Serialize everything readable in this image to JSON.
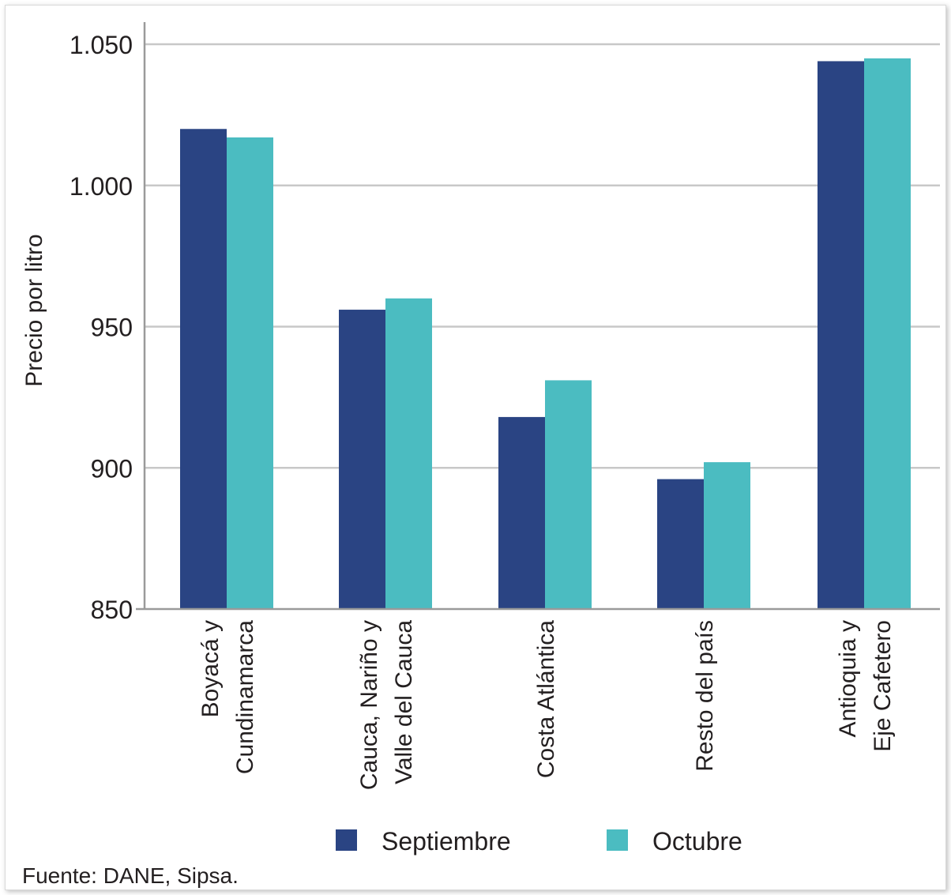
{
  "chart_data": {
    "type": "bar",
    "ylabel": "Precio por litro",
    "ylim": [
      850,
      1050
    ],
    "yticks": [
      850,
      900,
      950,
      1000,
      1050
    ],
    "ytick_labels": [
      "850",
      "900",
      "950",
      "1.000",
      "1.050"
    ],
    "grid": true,
    "categories": [
      [
        "Boyacá y",
        "Cundinamarca"
      ],
      [
        "Cauca, Nariño y",
        "Valle del Cauca"
      ],
      [
        "Costa Atlántica"
      ],
      [
        "Resto del país"
      ],
      [
        "Antioquia y",
        "Eje Cafetero"
      ]
    ],
    "series": [
      {
        "name": "Septiembre",
        "color": "#2a4483",
        "values": [
          1020,
          956,
          918,
          896,
          1044
        ]
      },
      {
        "name": "Octubre",
        "color": "#4bbcc1",
        "values": [
          1017,
          960,
          931,
          902,
          1045
        ]
      }
    ],
    "legend_position": "bottom"
  },
  "source": "Fuente: DANE, Sipsa."
}
